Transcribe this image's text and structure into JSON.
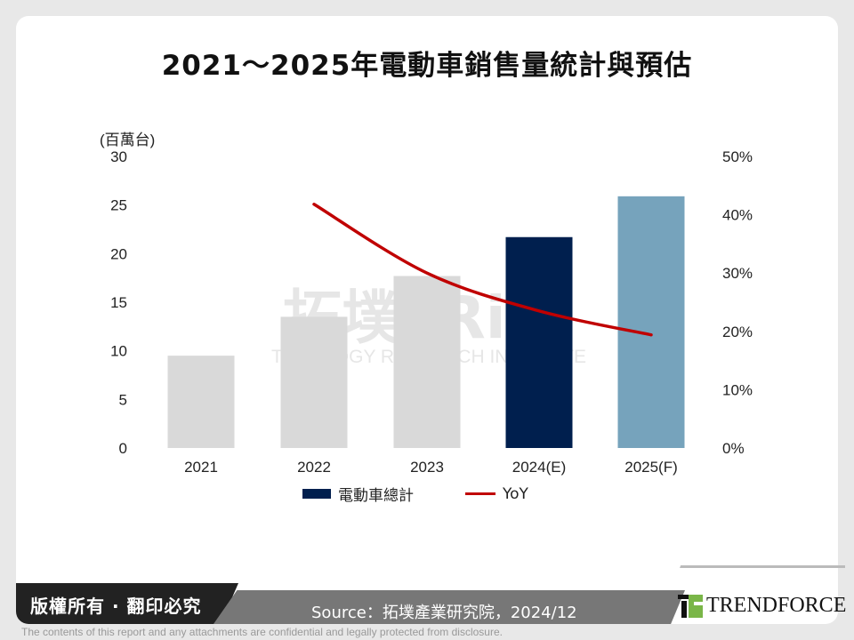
{
  "title": "2021～2025年電動車銷售量統計與預估",
  "chart_data": {
    "type": "bar+line",
    "categories": [
      "2021",
      "2022",
      "2023",
      "2024(E)",
      "2025(F)"
    ],
    "y_left": {
      "label": "(百萬台)",
      "range": [
        0,
        30
      ],
      "ticks": [
        "0",
        "5",
        "10",
        "15",
        "20",
        "25",
        "30"
      ]
    },
    "y_right": {
      "range": [
        0,
        50
      ],
      "ticks": [
        "0%",
        "10%",
        "20%",
        "30%",
        "40%",
        "50%"
      ]
    },
    "series": [
      {
        "name": "電動車總計",
        "type": "bar",
        "axis": "left",
        "values": [
          9.5,
          13.5,
          17.7,
          21.7,
          25.9
        ],
        "colors": [
          "#d9d9d9",
          "#d9d9d9",
          "#d9d9d9",
          "#001f4e",
          "#76a3bc"
        ]
      },
      {
        "name": "YoY",
        "type": "line",
        "axis": "right",
        "values": [
          null,
          41.8,
          30,
          23.5,
          19.4
        ],
        "color": "#c00000"
      }
    ],
    "legend": "bottom",
    "grid": false
  },
  "watermark": "拓墣 TRi TOPOLOGY RESEARCH INSTITUTE",
  "footer": {
    "copyright": "版權所有 · 翻印必究",
    "source": "Source：拓墣產業研究院，2024/12",
    "logo": "TRENDFORCE",
    "disclaimer": "The contents of this report and any attachments are confidential and legally protected from disclosure."
  }
}
